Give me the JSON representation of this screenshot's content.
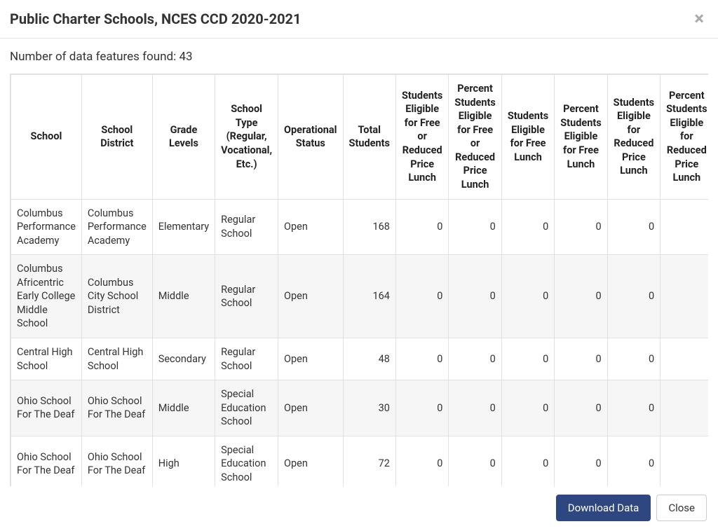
{
  "header": {
    "title": "Public Charter Schools, NCES CCD 2020-2021"
  },
  "summary": {
    "label_prefix": "Number of data features found: ",
    "count": "43"
  },
  "table": {
    "columns": [
      "School",
      "School District",
      "Grade Levels",
      "School Type (Regular, Vocational, Etc.)",
      "Operational Status",
      "Total Students",
      "Students Eligible for Free or Reduced Price Lunch",
      "Percent Students Eligible for Free or Reduced Price Lunch",
      "Students Eligible for Free Lunch",
      "Percent Students Eligible for Free Lunch",
      "Students Eligible for Reduced Price Lunch",
      "Percent Students Eligible for Reduced Price Lunch"
    ],
    "numeric_columns": [
      5,
      6,
      7,
      8,
      9,
      10,
      11
    ],
    "rows": [
      [
        "Columbus Performance Academy",
        "Columbus Performance Academy",
        "Elementary",
        "Regular School",
        "Open",
        "168",
        "0",
        "0",
        "0",
        "0",
        "0",
        ""
      ],
      [
        "Columbus Africentric Early College Middle School",
        "Columbus City School District",
        "Middle",
        "Regular School",
        "Open",
        "164",
        "0",
        "0",
        "0",
        "0",
        "0",
        ""
      ],
      [
        "Central High School",
        "Central High School",
        "Secondary",
        "Regular School",
        "Open",
        "48",
        "0",
        "0",
        "0",
        "0",
        "0",
        ""
      ],
      [
        "Ohio School For The Deaf",
        "Ohio School For The Deaf",
        "Middle",
        "Special Education School",
        "Open",
        "30",
        "0",
        "0",
        "0",
        "0",
        "0",
        ""
      ],
      [
        "Ohio School For The Deaf",
        "Ohio School For The Deaf",
        "High",
        "Special Education School",
        "Open",
        "72",
        "0",
        "0",
        "0",
        "0",
        "0",
        ""
      ]
    ]
  },
  "footer": {
    "download_label": "Download Data",
    "close_label": "Close"
  },
  "colors": {
    "border": "#dee2e6",
    "row_alt_bg": "#f6f6f6",
    "primary_btn_bg": "#2f4781",
    "text": "#333333",
    "close_x": "#aaaaaa"
  }
}
